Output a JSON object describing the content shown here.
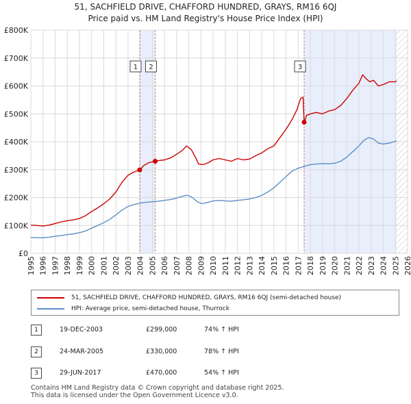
{
  "title": {
    "line1": "51, SACHFIELD DRIVE, CHAFFORD HUNDRED, GRAYS, RM16 6QJ",
    "line2": "Price paid vs. HM Land Registry's House Price Index (HPI)"
  },
  "colors": {
    "property_line": "#cc0000",
    "hpi_line": "#5b8ec6",
    "shade": "#e8eefb",
    "marker_line": "#d67c7c",
    "grid": "#d9d9d9"
  },
  "legend": {
    "property": "51, SACHFIELD DRIVE, CHAFFORD HUNDRED, GRAYS, RM16 6QJ (semi-detached house)",
    "hpi": "HPI: Average price, semi-detached house, Thurrock"
  },
  "sales": [
    {
      "marker": "1",
      "date": "19-DEC-2003",
      "price": "£299,000",
      "hpi": "74% ↑ HPI"
    },
    {
      "marker": "2",
      "date": "24-MAR-2005",
      "price": "£330,000",
      "hpi": "78% ↑ HPI"
    },
    {
      "marker": "3",
      "date": "29-JUN-2017",
      "price": "£470,000",
      "hpi": "54% ↑ HPI"
    }
  ],
  "footer": {
    "line1": "Contains HM Land Registry data © Crown copyright and database right 2025.",
    "line2": "This data is licensed under the Open Government Licence v3.0."
  },
  "chart_data": {
    "type": "line",
    "xlabel": "",
    "ylabel": "",
    "xlim": [
      1995,
      2026
    ],
    "ylim": [
      0,
      800000
    ],
    "grid": true,
    "y_ticks": [
      {
        "value": 0,
        "label": "£0"
      },
      {
        "value": 100000,
        "label": "£100K"
      },
      {
        "value": 200000,
        "label": "£200K"
      },
      {
        "value": 300000,
        "label": "£300K"
      },
      {
        "value": 400000,
        "label": "£400K"
      },
      {
        "value": 500000,
        "label": "£500K"
      },
      {
        "value": 600000,
        "label": "£600K"
      },
      {
        "value": 700000,
        "label": "£700K"
      },
      {
        "value": 800000,
        "label": "£800K"
      }
    ],
    "x_ticks": [
      "1995",
      "1996",
      "1997",
      "1998",
      "1999",
      "2000",
      "2001",
      "2002",
      "2003",
      "2004",
      "2005",
      "2006",
      "2007",
      "2008",
      "2009",
      "2010",
      "2011",
      "2012",
      "2013",
      "2014",
      "2015",
      "2016",
      "2017",
      "2018",
      "2019",
      "2020",
      "2021",
      "2022",
      "2023",
      "2024",
      "2025",
      "2026"
    ],
    "shaded_ranges": [
      [
        2003.96,
        2005.23
      ],
      [
        2017.49,
        2025.1
      ]
    ],
    "hatch_from": 2025.1,
    "events": [
      {
        "label": "1",
        "x": 2003.96,
        "y": 299000
      },
      {
        "label": "2",
        "x": 2005.23,
        "y": 330000
      },
      {
        "label": "3",
        "x": 2017.49,
        "y": 470000
      }
    ],
    "series": [
      {
        "name": "51, SACHFIELD DRIVE, CHAFFORD HUNDRED, GRAYS, RM16 6QJ (semi-detached house)",
        "x": [
          1995,
          1995.5,
          1996,
          1996.5,
          1997,
          1997.5,
          1998,
          1998.5,
          1999,
          1999.5,
          2000,
          2000.5,
          2001,
          2001.5,
          2002,
          2002.5,
          2003,
          2003.5,
          2003.96,
          2004.3,
          2004.7,
          2005.23,
          2005.6,
          2006,
          2006.5,
          2007,
          2007.5,
          2007.8,
          2008.2,
          2008.6,
          2008.8,
          2009.2,
          2009.6,
          2010,
          2010.5,
          2011,
          2011.5,
          2012,
          2012.5,
          2013,
          2013.5,
          2014,
          2014.5,
          2015,
          2015.5,
          2016,
          2016.5,
          2016.9,
          2017.2,
          2017.4,
          2017.49,
          2017.7,
          2018,
          2018.5,
          2019,
          2019.5,
          2020,
          2020.5,
          2021,
          2021.5,
          2022,
          2022.3,
          2022.6,
          2022.9,
          2023.2,
          2023.6,
          2024,
          2024.5,
          2025,
          2025.1
        ],
        "values": [
          101000,
          100000,
          98000,
          101000,
          107000,
          113000,
          117000,
          120000,
          125000,
          135000,
          150000,
          163000,
          178000,
          195000,
          220000,
          255000,
          280000,
          292000,
          299000,
          315000,
          325000,
          330000,
          333000,
          335000,
          342000,
          355000,
          370000,
          385000,
          372000,
          340000,
          320000,
          318000,
          325000,
          335000,
          340000,
          335000,
          330000,
          340000,
          335000,
          338000,
          350000,
          360000,
          375000,
          385000,
          415000,
          445000,
          480000,
          515000,
          555000,
          560000,
          470000,
          495000,
          500000,
          505000,
          500000,
          510000,
          515000,
          530000,
          555000,
          585000,
          610000,
          640000,
          625000,
          615000,
          620000,
          600000,
          605000,
          615000,
          615000,
          618000
        ]
      },
      {
        "name": "HPI: Average price, semi-detached house, Thurrock",
        "x": [
          1995,
          1995.5,
          1996,
          1996.5,
          1997,
          1997.5,
          1998,
          1998.5,
          1999,
          1999.5,
          2000,
          2000.5,
          2001,
          2001.5,
          2002,
          2002.5,
          2003,
          2003.5,
          2004,
          2004.5,
          2005,
          2005.5,
          2006,
          2006.5,
          2007,
          2007.5,
          2007.9,
          2008.3,
          2008.7,
          2009.1,
          2009.5,
          2010,
          2010.5,
          2011,
          2011.5,
          2012,
          2012.5,
          2013,
          2013.5,
          2014,
          2014.5,
          2015,
          2015.5,
          2016,
          2016.5,
          2017,
          2017.5,
          2018,
          2018.5,
          2019,
          2019.5,
          2020,
          2020.5,
          2021,
          2021.5,
          2022,
          2022.4,
          2022.8,
          2023.2,
          2023.6,
          2024,
          2024.5,
          2025,
          2025.1
        ],
        "values": [
          57000,
          56000,
          56000,
          58000,
          61000,
          64000,
          67000,
          70000,
          74000,
          80000,
          90000,
          100000,
          110000,
          122000,
          138000,
          155000,
          168000,
          175000,
          180000,
          183000,
          185000,
          187000,
          190000,
          193000,
          198000,
          205000,
          208000,
          200000,
          185000,
          178000,
          182000,
          188000,
          190000,
          188000,
          187000,
          190000,
          192000,
          195000,
          200000,
          208000,
          220000,
          235000,
          255000,
          275000,
          295000,
          305000,
          312000,
          318000,
          320000,
          322000,
          321000,
          323000,
          330000,
          345000,
          365000,
          385000,
          405000,
          415000,
          410000,
          395000,
          392000,
          395000,
          402000,
          403000
        ]
      }
    ]
  }
}
